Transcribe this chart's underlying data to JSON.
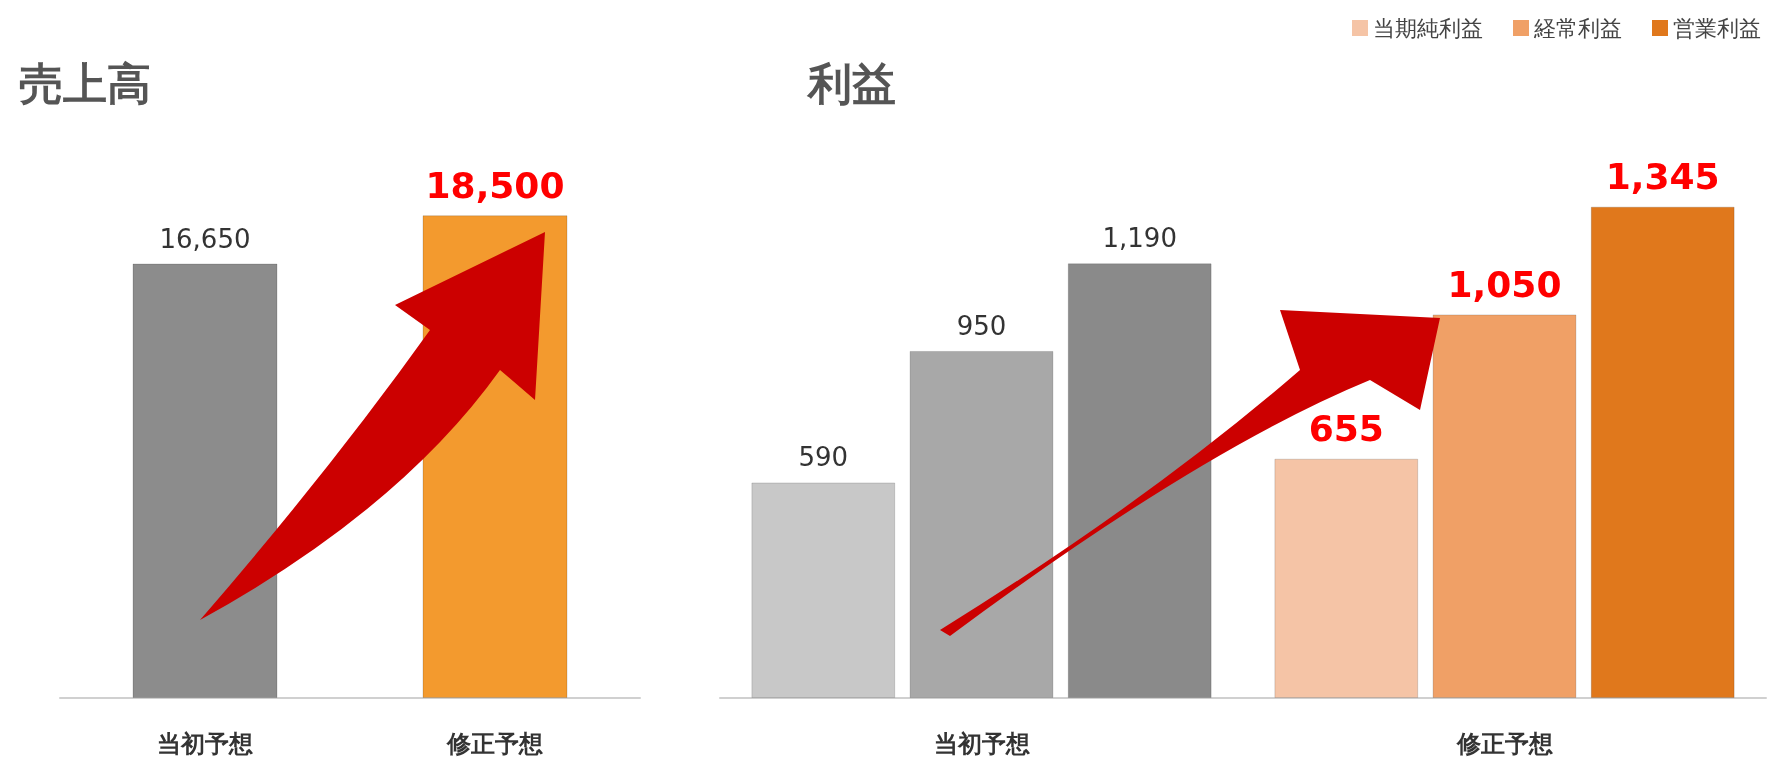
{
  "chart_data": [
    {
      "type": "bar",
      "title": "売上高",
      "categories": [
        "当初予想",
        "修正予想"
      ],
      "values": [
        16650,
        18500
      ],
      "colors": [
        "#8c8c8c",
        "#f39a2e"
      ],
      "value_labels": [
        "16,650",
        "18,500"
      ],
      "tick_labels": "x"
    },
    {
      "type": "bar",
      "title": "利益",
      "categories": [
        "当初予想",
        "修正予想"
      ],
      "legend": "top right",
      "tick_labels": "x",
      "series": [
        {
          "name": "当期純利益",
          "color": "#f5c4a6",
          "colors": [
            "#c8c8c8",
            "#f5c4a6"
          ],
          "values": [
            590,
            655
          ],
          "value_labels": [
            "590",
            "655"
          ]
        },
        {
          "name": "経常利益",
          "color": "#f0a066",
          "colors": [
            "#a8a8a8",
            "#f0a066"
          ],
          "values": [
            950,
            1050
          ],
          "value_labels": [
            "950",
            "1,050"
          ]
        },
        {
          "name": "営業利益",
          "color": "#e0781c",
          "colors": [
            "#8a8a8a",
            "#e0781c"
          ],
          "values": [
            1190,
            1345
          ],
          "value_labels": [
            "1,190",
            "1,345"
          ]
        }
      ]
    }
  ]
}
